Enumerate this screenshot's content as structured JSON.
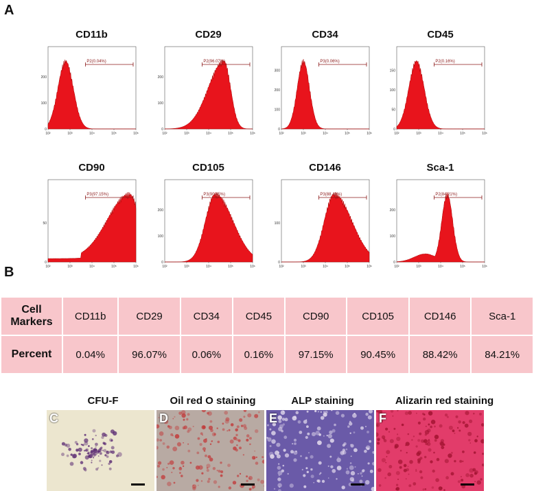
{
  "panels": {
    "a": "A",
    "b": "B"
  },
  "histograms": [
    {
      "marker": "CD11b",
      "gate": "P2(0.04%)",
      "yticks": [
        "0",
        "100",
        "200"
      ],
      "peak": 2.8,
      "width": 0.35,
      "shape": "normal"
    },
    {
      "marker": "CD29",
      "gate": "P2(96.07%)",
      "yticks": [
        "0",
        "100",
        "200"
      ],
      "peak": 4.7,
      "width": 0.3,
      "shape": "leftTail"
    },
    {
      "marker": "CD34",
      "gate": "P3(0.06%)",
      "yticks": [
        "0",
        "100",
        "200",
        "300"
      ],
      "peak": 3.0,
      "width": 0.28,
      "shape": "normal"
    },
    {
      "marker": "CD45",
      "gate": "P2(0.16%)",
      "yticks": [
        "0",
        "50",
        "100",
        "150"
      ],
      "peak": 2.9,
      "width": 0.35,
      "shape": "normal"
    },
    {
      "marker": "CD90",
      "gate": "P3(97.15%)",
      "yticks": [
        "0",
        "50"
      ],
      "peak": 5.7,
      "width": 0.5,
      "shape": "leftTailLong"
    },
    {
      "marker": "CD105",
      "gate": "P3(90.45%)",
      "yticks": [
        "0",
        "100",
        "200"
      ],
      "peak": 4.3,
      "width": 0.45,
      "shape": "rightTail"
    },
    {
      "marker": "CD146",
      "gate": "P3(88.42%)",
      "yticks": [
        "0",
        "100"
      ],
      "peak": 4.4,
      "width": 0.45,
      "shape": "rightTail"
    },
    {
      "marker": "Sca-1",
      "gate": "P2(84.21%)",
      "yticks": [
        "0",
        "100",
        "200"
      ],
      "peak": 4.3,
      "width": 0.25,
      "shape": "leftShoulder"
    }
  ],
  "xticks": [
    "10²",
    "10³",
    "10⁴",
    "10⁵",
    "10⁶"
  ],
  "table": {
    "row1_header": "Cell\nMarkers",
    "row2_header": "Percent",
    "markers": [
      "CD11b",
      "CD29",
      "CD34",
      "CD45",
      "CD90",
      "CD105",
      "CD146",
      "Sca-1"
    ],
    "percents": [
      "0.04%",
      "96.07%",
      "0.06%",
      "0.16%",
      "97.15%",
      "90.45%",
      "88.42%",
      "84.21%"
    ]
  },
  "photos": [
    {
      "title": "CFU-F",
      "letter": "C",
      "bg": "#ece6cf",
      "fg": "#5a2a72"
    },
    {
      "title": "Oil red O staining",
      "letter": "D",
      "bg": "#b8aaa3",
      "fg": "#c23a3a"
    },
    {
      "title": "ALP staining",
      "letter": "E",
      "bg": "#6a5aa8",
      "fg": "#e8e0f0"
    },
    {
      "title": "Alizarin red staining",
      "letter": "F",
      "bg": "#e23c6a",
      "fg": "#a0122f"
    }
  ],
  "colors": {
    "histogram_fill": "#e8141c",
    "gate_line": "#8b1a1a",
    "table_bg": "#f8c6cb"
  }
}
